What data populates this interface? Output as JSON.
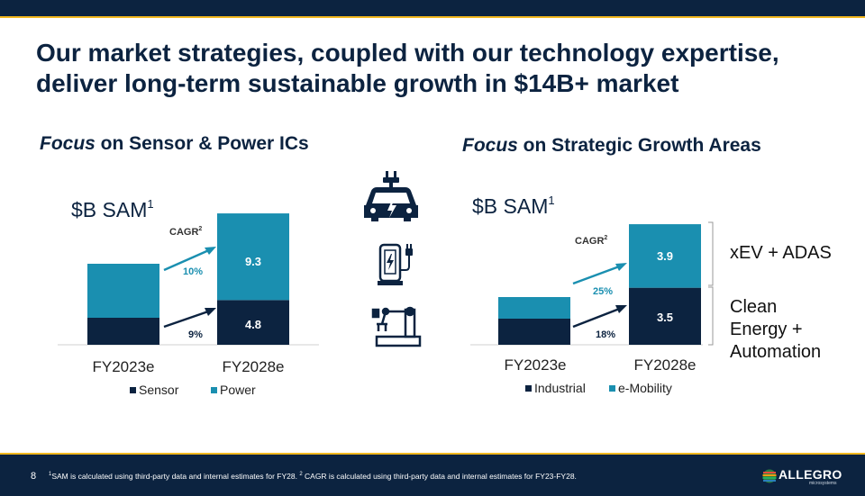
{
  "title": "Our market strategies, coupled with our technology expertise, deliver long-term sustainable growth in $14B+ market",
  "left": {
    "subhead_em": "Focus",
    "subhead_rest": " on Sensor & Power ICs",
    "sam_label": "$B SAM",
    "sam_sup": "1"
  },
  "right": {
    "subhead_em": "Focus",
    "subhead_rest": " on Strategic Growth Areas",
    "sam_label": "$B SAM",
    "sam_sup": "1",
    "bracket_top": "xEV + ADAS",
    "bracket_bottom": [
      "Clean",
      "Energy +",
      "Automation"
    ]
  },
  "icons": [
    "electric-car-icon",
    "ev-charger-icon",
    "robot-arm-icon"
  ],
  "footer": {
    "page_number": "8",
    "footnote_1_sup": "1",
    "footnote_1": "SAM is calculated using third-party data and internal estimates for FY28. ",
    "footnote_2_sup": "2",
    "footnote_2": " CAGR is calculated using third-party data and internal estimates for FY23-FY28.",
    "logo": "ALLEGRO",
    "logo_sub": "microsystems"
  },
  "colors": {
    "navy": "#0c2340",
    "teal": "#1a8fb0",
    "gold": "#f2b81f"
  },
  "chart_data": [
    {
      "type": "bar",
      "stacked": true,
      "categories": [
        "FY2023e",
        "FY2028e"
      ],
      "series": [
        {
          "name": "Sensor",
          "color": "#0c2340",
          "values": [
            null,
            4.8
          ]
        },
        {
          "name": "Power",
          "color": "#1a8fb0",
          "values": [
            null,
            9.3
          ]
        }
      ],
      "data_labels": [
        "9.3",
        "4.8"
      ],
      "cagr_title": "CAGR",
      "cagr_sup": "2",
      "cagr": [
        {
          "series": "Power",
          "label": "10%"
        },
        {
          "series": "Sensor",
          "label": "9%"
        }
      ],
      "legend_position": "bottom"
    },
    {
      "type": "bar",
      "stacked": true,
      "categories": [
        "FY2023e",
        "FY2028e"
      ],
      "series": [
        {
          "name": "Industrial",
          "color": "#0c2340",
          "values": [
            null,
            3.5
          ]
        },
        {
          "name": "e-Mobility",
          "color": "#1a8fb0",
          "values": [
            null,
            3.9
          ]
        }
      ],
      "data_labels": [
        "3.9",
        "3.5"
      ],
      "cagr_title": "CAGR",
      "cagr_sup": "2",
      "cagr": [
        {
          "series": "e-Mobility",
          "label": "25%"
        },
        {
          "series": "Industrial",
          "label": "18%"
        }
      ],
      "legend_position": "bottom"
    }
  ]
}
